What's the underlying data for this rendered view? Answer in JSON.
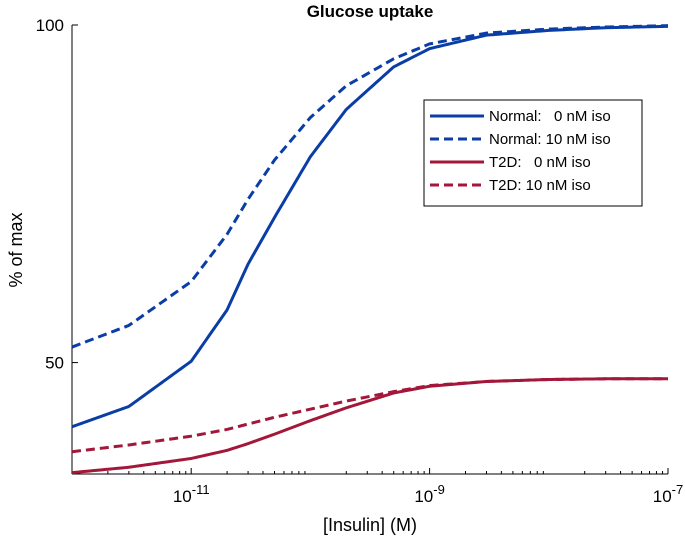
{
  "chart_data": {
    "type": "line",
    "title": "Glucose uptake",
    "xlabel": "[Insulin] (M)",
    "ylabel": "% of max",
    "x_scale": "log",
    "xlim": [
      1e-12,
      1e-07
    ],
    "ylim": [
      33.5,
      100
    ],
    "xticks": [
      {
        "value": 1e-11,
        "base": "10",
        "exp": "-11"
      },
      {
        "value": 1e-09,
        "base": "10",
        "exp": "-9"
      },
      {
        "value": 1e-07,
        "base": "10",
        "exp": "-7"
      }
    ],
    "yticks": [
      {
        "value": 50,
        "label": "50"
      },
      {
        "value": 100,
        "label": "100"
      }
    ],
    "legend_position": "right",
    "series": [
      {
        "name": "Normal:   0 nM iso",
        "color": "#0a3ea6",
        "style": "solid",
        "x": [
          1e-12,
          3e-12,
          1e-11,
          2e-11,
          3e-11,
          5e-11,
          1e-10,
          2e-10,
          5e-10,
          1e-09,
          3e-09,
          1e-08,
          3e-08,
          1e-07
        ],
        "y": [
          40.5,
          43.5,
          50.2,
          57.8,
          64.6,
          71.5,
          80.5,
          87.5,
          93.8,
          96.5,
          98.5,
          99.2,
          99.6,
          99.8
        ]
      },
      {
        "name": "Normal: 10 nM iso",
        "color": "#0a3ea6",
        "style": "dashed",
        "x": [
          1e-12,
          3e-12,
          1e-11,
          2e-11,
          3e-11,
          5e-11,
          1e-10,
          2e-10,
          5e-10,
          1e-09,
          3e-09,
          1e-08,
          3e-08,
          1e-07
        ],
        "y": [
          52.3,
          55.5,
          62.0,
          69.0,
          74.2,
          80.0,
          86.3,
          91.0,
          95.0,
          97.2,
          98.8,
          99.4,
          99.7,
          99.9
        ]
      },
      {
        "name": "T2D:   0 nM iso",
        "color": "#a3173a",
        "style": "solid",
        "x": [
          1e-12,
          3e-12,
          1e-11,
          2e-11,
          3e-11,
          5e-11,
          1e-10,
          2e-10,
          5e-10,
          1e-09,
          3e-09,
          1e-08,
          3e-08,
          1e-07
        ],
        "y": [
          33.7,
          34.5,
          35.8,
          37.0,
          38.0,
          39.4,
          41.4,
          43.3,
          45.5,
          46.5,
          47.2,
          47.5,
          47.6,
          47.6
        ]
      },
      {
        "name": "T2D: 10 nM iso",
        "color": "#a3173a",
        "style": "dashed",
        "x": [
          1e-12,
          3e-12,
          1e-11,
          2e-11,
          3e-11,
          5e-11,
          1e-10,
          2e-10,
          5e-10,
          1e-09,
          3e-09,
          1e-08,
          3e-08,
          1e-07
        ],
        "y": [
          36.8,
          37.8,
          39.1,
          40.1,
          40.9,
          41.9,
          43.1,
          44.3,
          45.7,
          46.6,
          47.2,
          47.5,
          47.6,
          47.6
        ]
      }
    ]
  }
}
